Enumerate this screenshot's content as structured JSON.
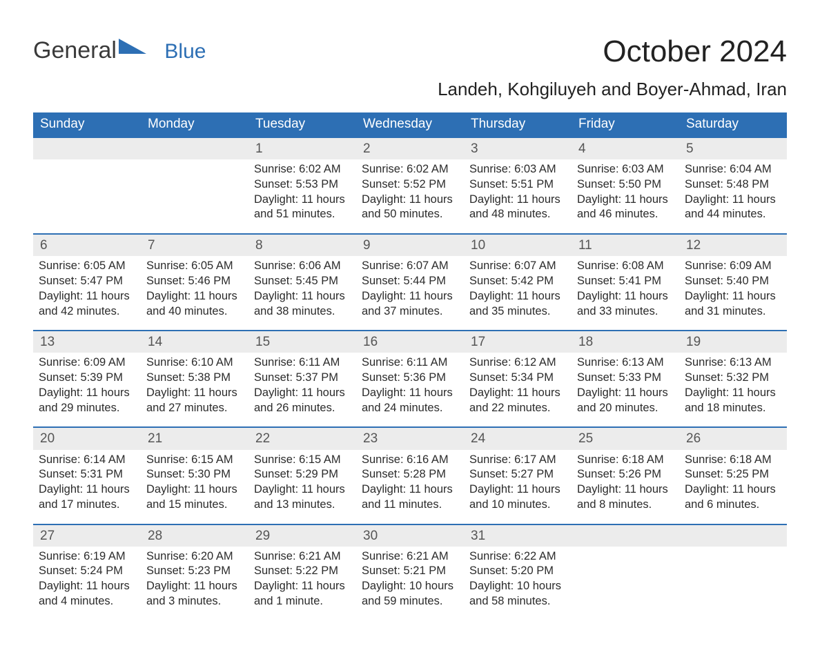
{
  "brand": {
    "word1": "General",
    "word2": "Blue",
    "text_color": "#3a3a3a",
    "accent_color": "#2d6fb4"
  },
  "header": {
    "title": "October 2024",
    "location": "Landeh, Kohgiluyeh and Boyer-Ahmad, Iran"
  },
  "colors": {
    "header_bg": "#2d6fb4",
    "header_text": "#ffffff",
    "daynum_bg": "#ececec",
    "daynum_border": "#2d6fb4",
    "body_text": "#2b2b2b",
    "page_bg": "#ffffff"
  },
  "day_names": [
    "Sunday",
    "Monday",
    "Tuesday",
    "Wednesday",
    "Thursday",
    "Friday",
    "Saturday"
  ],
  "weeks": [
    [
      {
        "blank": true
      },
      {
        "blank": true
      },
      {
        "n": "1",
        "sunrise": "6:02 AM",
        "sunset": "5:53 PM",
        "dl_h": "11",
        "dl_m": "51"
      },
      {
        "n": "2",
        "sunrise": "6:02 AM",
        "sunset": "5:52 PM",
        "dl_h": "11",
        "dl_m": "50"
      },
      {
        "n": "3",
        "sunrise": "6:03 AM",
        "sunset": "5:51 PM",
        "dl_h": "11",
        "dl_m": "48"
      },
      {
        "n": "4",
        "sunrise": "6:03 AM",
        "sunset": "5:50 PM",
        "dl_h": "11",
        "dl_m": "46"
      },
      {
        "n": "5",
        "sunrise": "6:04 AM",
        "sunset": "5:48 PM",
        "dl_h": "11",
        "dl_m": "44"
      }
    ],
    [
      {
        "n": "6",
        "sunrise": "6:05 AM",
        "sunset": "5:47 PM",
        "dl_h": "11",
        "dl_m": "42"
      },
      {
        "n": "7",
        "sunrise": "6:05 AM",
        "sunset": "5:46 PM",
        "dl_h": "11",
        "dl_m": "40"
      },
      {
        "n": "8",
        "sunrise": "6:06 AM",
        "sunset": "5:45 PM",
        "dl_h": "11",
        "dl_m": "38"
      },
      {
        "n": "9",
        "sunrise": "6:07 AM",
        "sunset": "5:44 PM",
        "dl_h": "11",
        "dl_m": "37"
      },
      {
        "n": "10",
        "sunrise": "6:07 AM",
        "sunset": "5:42 PM",
        "dl_h": "11",
        "dl_m": "35"
      },
      {
        "n": "11",
        "sunrise": "6:08 AM",
        "sunset": "5:41 PM",
        "dl_h": "11",
        "dl_m": "33"
      },
      {
        "n": "12",
        "sunrise": "6:09 AM",
        "sunset": "5:40 PM",
        "dl_h": "11",
        "dl_m": "31"
      }
    ],
    [
      {
        "n": "13",
        "sunrise": "6:09 AM",
        "sunset": "5:39 PM",
        "dl_h": "11",
        "dl_m": "29"
      },
      {
        "n": "14",
        "sunrise": "6:10 AM",
        "sunset": "5:38 PM",
        "dl_h": "11",
        "dl_m": "27"
      },
      {
        "n": "15",
        "sunrise": "6:11 AM",
        "sunset": "5:37 PM",
        "dl_h": "11",
        "dl_m": "26"
      },
      {
        "n": "16",
        "sunrise": "6:11 AM",
        "sunset": "5:36 PM",
        "dl_h": "11",
        "dl_m": "24"
      },
      {
        "n": "17",
        "sunrise": "6:12 AM",
        "sunset": "5:34 PM",
        "dl_h": "11",
        "dl_m": "22"
      },
      {
        "n": "18",
        "sunrise": "6:13 AM",
        "sunset": "5:33 PM",
        "dl_h": "11",
        "dl_m": "20"
      },
      {
        "n": "19",
        "sunrise": "6:13 AM",
        "sunset": "5:32 PM",
        "dl_h": "11",
        "dl_m": "18"
      }
    ],
    [
      {
        "n": "20",
        "sunrise": "6:14 AM",
        "sunset": "5:31 PM",
        "dl_h": "11",
        "dl_m": "17"
      },
      {
        "n": "21",
        "sunrise": "6:15 AM",
        "sunset": "5:30 PM",
        "dl_h": "11",
        "dl_m": "15"
      },
      {
        "n": "22",
        "sunrise": "6:15 AM",
        "sunset": "5:29 PM",
        "dl_h": "11",
        "dl_m": "13"
      },
      {
        "n": "23",
        "sunrise": "6:16 AM",
        "sunset": "5:28 PM",
        "dl_h": "11",
        "dl_m": "11"
      },
      {
        "n": "24",
        "sunrise": "6:17 AM",
        "sunset": "5:27 PM",
        "dl_h": "11",
        "dl_m": "10"
      },
      {
        "n": "25",
        "sunrise": "6:18 AM",
        "sunset": "5:26 PM",
        "dl_h": "11",
        "dl_m": "8"
      },
      {
        "n": "26",
        "sunrise": "6:18 AM",
        "sunset": "5:25 PM",
        "dl_h": "11",
        "dl_m": "6"
      }
    ],
    [
      {
        "n": "27",
        "sunrise": "6:19 AM",
        "sunset": "5:24 PM",
        "dl_h": "11",
        "dl_m": "4"
      },
      {
        "n": "28",
        "sunrise": "6:20 AM",
        "sunset": "5:23 PM",
        "dl_h": "11",
        "dl_m": "3"
      },
      {
        "n": "29",
        "sunrise": "6:21 AM",
        "sunset": "5:22 PM",
        "dl_h": "11",
        "dl_m": "1"
      },
      {
        "n": "30",
        "sunrise": "6:21 AM",
        "sunset": "5:21 PM",
        "dl_h": "10",
        "dl_m": "59"
      },
      {
        "n": "31",
        "sunrise": "6:22 AM",
        "sunset": "5:20 PM",
        "dl_h": "10",
        "dl_m": "58"
      },
      {
        "blank": true
      },
      {
        "blank": true
      }
    ]
  ],
  "labels": {
    "sunrise_prefix": "Sunrise: ",
    "sunset_prefix": "Sunset: ",
    "daylight_prefix": "Daylight: ",
    "hours_word": " hours",
    "and_word": "and ",
    "minutes_word_plural": " minutes.",
    "minutes_word_singular": " minute."
  }
}
